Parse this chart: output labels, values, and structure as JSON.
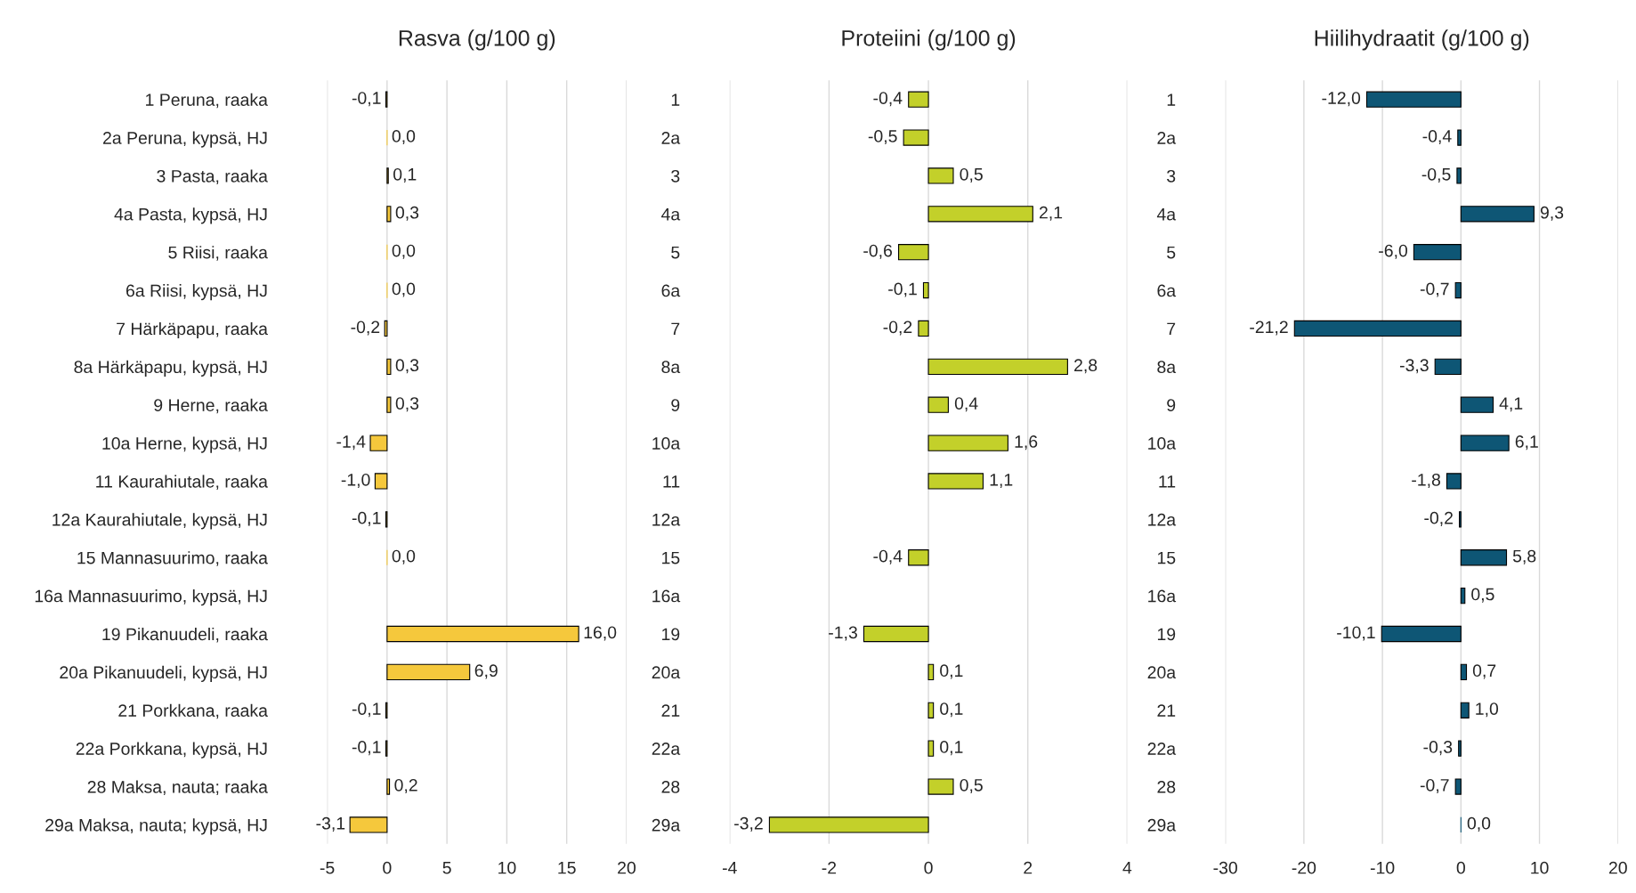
{
  "chart_data": [
    {
      "type": "bar",
      "orientation": "horizontal",
      "title": "Rasva (g/100 g)",
      "color": "#f5c83c",
      "grid": "x",
      "categories": [
        "1 Peruna, raaka",
        "2a Peruna, kypsä, HJ",
        "3 Pasta, raaka",
        "4a Pasta, kypsä, HJ",
        "5 Riisi, raaka",
        "6a Riisi, kypsä, HJ",
        "7 Härkäpapu, raaka",
        "8a Härkäpapu, kypsä, HJ",
        "9 Herne, raaka",
        "10a Herne, kypsä, HJ",
        "11 Kaurahiutale, raaka",
        "12a Kaurahiutale, kypsä, HJ",
        "15 Mannasuurimo, raaka",
        "16a Mannasuurimo, kypsä, HJ",
        "19 Pikanuudeli, raaka",
        "20a Pikanuudeli, kypsä, HJ",
        "21 Porkkana, raaka",
        "22a Porkkana, kypsä, HJ",
        "28 Maksa, nauta; raaka",
        "29a Maksa, nauta; kypsä, HJ"
      ],
      "values": [
        -0.1,
        0.0,
        0.1,
        0.3,
        0.0,
        0.0,
        -0.2,
        0.3,
        0.3,
        -1.4,
        -1.0,
        -0.1,
        0.0,
        null,
        16.0,
        6.9,
        -0.1,
        -0.1,
        0.2,
        -3.1
      ],
      "value_labels": [
        "-0,1",
        "0,0",
        "0,1",
        "0,3",
        "0,0",
        "0,0",
        "-0,2",
        "0,3",
        "0,3",
        "-1,4",
        "-1,0",
        "-0,1",
        "0,0",
        null,
        "16,0",
        "6,9",
        "-0,1",
        "-0,1",
        "0,2",
        "-3,1"
      ],
      "xlim": [
        -5,
        20
      ],
      "xticks": [
        -5,
        0,
        5,
        10,
        15,
        20
      ]
    },
    {
      "type": "bar",
      "orientation": "horizontal",
      "title": "Proteiini (g/100 g)",
      "color": "#c3d02a",
      "grid": "x",
      "categories": [
        "1",
        "2a",
        "3",
        "4a",
        "5",
        "6a",
        "7",
        "8a",
        "9",
        "10a",
        "11",
        "12a",
        "15",
        "16a",
        "19",
        "20a",
        "21",
        "22a",
        "28",
        "29a"
      ],
      "values": [
        -0.4,
        -0.5,
        0.5,
        2.1,
        -0.6,
        -0.1,
        -0.2,
        2.8,
        0.4,
        1.6,
        1.1,
        null,
        -0.4,
        null,
        -1.3,
        0.1,
        0.1,
        0.1,
        0.5,
        -3.2
      ],
      "value_labels": [
        "-0,4",
        "-0,5",
        "0,5",
        "2,1",
        "-0,6",
        "-0,1",
        "-0,2",
        "2,8",
        "0,4",
        "1,6",
        "1,1",
        null,
        "-0,4",
        null,
        "-1,3",
        "0,1",
        "0,1",
        "0,1",
        "0,5",
        "-3,2"
      ],
      "xlim": [
        -4,
        4
      ],
      "xticks": [
        -4,
        -2,
        0,
        2,
        4
      ]
    },
    {
      "type": "bar",
      "orientation": "horizontal",
      "title": "Hiilihydraatit (g/100 g)",
      "color": "#0e5675",
      "grid": "x",
      "categories": [
        "1",
        "2a",
        "3",
        "4a",
        "5",
        "6a",
        "7",
        "8a",
        "9",
        "10a",
        "11",
        "12a",
        "15",
        "16a",
        "19",
        "20a",
        "21",
        "22a",
        "28",
        "29a"
      ],
      "values": [
        -12.0,
        -0.4,
        -0.5,
        9.3,
        -6.0,
        -0.7,
        -21.2,
        -3.3,
        4.1,
        6.1,
        -1.8,
        -0.2,
        5.8,
        0.5,
        -10.1,
        0.7,
        1.0,
        -0.3,
        -0.7,
        0.0
      ],
      "value_labels": [
        "-12,0",
        "-0,4",
        "-0,5",
        "9,3",
        "-6,0",
        "-0,7",
        "-21,2",
        "-3,3",
        "4,1",
        "6,1",
        "-1,8",
        "-0,2",
        "5,8",
        "0,5",
        "-10,1",
        "0,7",
        "1,0",
        "-0,3",
        "-0,7",
        "0,0"
      ],
      "xlim": [
        -30,
        20
      ],
      "xticks": [
        -30,
        -20,
        -10,
        0,
        10,
        20
      ]
    }
  ]
}
